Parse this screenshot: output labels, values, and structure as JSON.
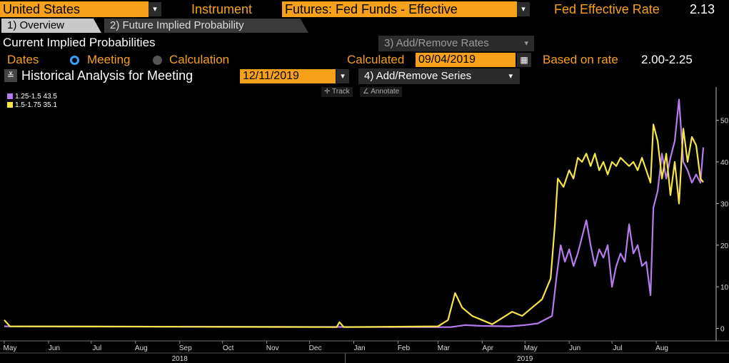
{
  "header": {
    "country": "United States",
    "instrument_label": "Instrument",
    "instrument_value": "Futures: Fed Funds - Effective",
    "rate_label": "Fed Effective Rate",
    "rate_value": "2.13"
  },
  "tabs": [
    {
      "label": "1) Overview",
      "active": true
    },
    {
      "label": "2) Future Implied Probability",
      "active": false
    }
  ],
  "section": {
    "title": "Current Implied Probabilities",
    "add_remove_rates": "3) Add/Remove Rates"
  },
  "options": {
    "dates_label": "Dates",
    "meeting_label": "Meeting",
    "calculation_label": "Calculation",
    "calculated_label": "Calculated",
    "calculated_value": "09/04/2019",
    "based_on_label": "Based on rate",
    "based_on_value": "2.00-2.25"
  },
  "historical": {
    "title": "Historical Analysis for Meeting",
    "meeting_date": "12/11/2019",
    "add_remove_series": "4) Add/Remove Series"
  },
  "chart_controls": {
    "track": "Track",
    "annotate": "Annotate"
  },
  "chart_data": {
    "type": "line",
    "legend_placement": "top-left",
    "grid": false,
    "ylim": [
      -3,
      58
    ],
    "y_ticks": [
      0,
      10,
      20,
      30,
      40,
      50
    ],
    "x_range": [
      "2018-05-01",
      "2019-09-04"
    ],
    "x_tick_labels": [
      {
        "label": "May",
        "date": "2018-05-01"
      },
      {
        "label": "Jun",
        "date": "2018-06-01"
      },
      {
        "label": "Jul",
        "date": "2018-07-01"
      },
      {
        "label": "Aug",
        "date": "2018-08-01"
      },
      {
        "label": "Sep",
        "date": "2018-09-01"
      },
      {
        "label": "Oct",
        "date": "2018-10-01"
      },
      {
        "label": "Nov",
        "date": "2018-11-01"
      },
      {
        "label": "Dec",
        "date": "2018-12-01"
      },
      {
        "label": "Jan",
        "date": "2019-01-01"
      },
      {
        "label": "Feb",
        "date": "2019-02-01"
      },
      {
        "label": "Mar",
        "date": "2019-03-01"
      },
      {
        "label": "Apr",
        "date": "2019-04-01"
      },
      {
        "label": "May",
        "date": "2019-05-01"
      },
      {
        "label": "Jun",
        "date": "2019-06-01"
      },
      {
        "label": "Jul",
        "date": "2019-07-01"
      },
      {
        "label": "Aug",
        "date": "2019-08-01"
      }
    ],
    "year_labels": [
      {
        "label": "2018",
        "date": "2018-09-01"
      },
      {
        "label": "2019",
        "date": "2019-05-01"
      }
    ],
    "series": [
      {
        "name": "1.25-1.5",
        "last": "43.5",
        "color": "#b57cf0",
        "points": [
          [
            "2018-05-01",
            0.5
          ],
          [
            "2019-03-10",
            0.3
          ],
          [
            "2019-03-20",
            0.8
          ],
          [
            "2019-04-01",
            0.6
          ],
          [
            "2019-04-20",
            0.5
          ],
          [
            "2019-05-01",
            0.8
          ],
          [
            "2019-05-10",
            1.2
          ],
          [
            "2019-05-20",
            3
          ],
          [
            "2019-05-23",
            12
          ],
          [
            "2019-05-26",
            20
          ],
          [
            "2019-05-29",
            16
          ],
          [
            "2019-06-01",
            19
          ],
          [
            "2019-06-04",
            15
          ],
          [
            "2019-06-07",
            18
          ],
          [
            "2019-06-10",
            22
          ],
          [
            "2019-06-13",
            26
          ],
          [
            "2019-06-16",
            20
          ],
          [
            "2019-06-19",
            15
          ],
          [
            "2019-06-22",
            19
          ],
          [
            "2019-06-25",
            17
          ],
          [
            "2019-06-28",
            20
          ],
          [
            "2019-07-01",
            10
          ],
          [
            "2019-07-04",
            15
          ],
          [
            "2019-07-07",
            18
          ],
          [
            "2019-07-10",
            16
          ],
          [
            "2019-07-13",
            25
          ],
          [
            "2019-07-16",
            18
          ],
          [
            "2019-07-19",
            20
          ],
          [
            "2019-07-22",
            15
          ],
          [
            "2019-07-25",
            16
          ],
          [
            "2019-07-28",
            8
          ],
          [
            "2019-07-30",
            29
          ],
          [
            "2019-08-02",
            33
          ],
          [
            "2019-08-05",
            42
          ],
          [
            "2019-08-08",
            36
          ],
          [
            "2019-08-11",
            41
          ],
          [
            "2019-08-14",
            45
          ],
          [
            "2019-08-17",
            55
          ],
          [
            "2019-08-20",
            40
          ],
          [
            "2019-08-23",
            38
          ],
          [
            "2019-08-26",
            35
          ],
          [
            "2019-08-29",
            37
          ],
          [
            "2019-09-01",
            35
          ],
          [
            "2019-09-03",
            43.5
          ]
        ]
      },
      {
        "name": "1.5-1.75",
        "last": "35.1",
        "color": "#f5e44a",
        "points": [
          [
            "2018-05-01",
            2
          ],
          [
            "2018-05-05",
            0.5
          ],
          [
            "2018-12-20",
            0.3
          ],
          [
            "2018-12-22",
            1.5
          ],
          [
            "2018-12-25",
            0.3
          ],
          [
            "2019-03-01",
            0.5
          ],
          [
            "2019-03-08",
            2
          ],
          [
            "2019-03-13",
            8.5
          ],
          [
            "2019-03-18",
            5
          ],
          [
            "2019-03-25",
            3
          ],
          [
            "2019-04-01",
            2
          ],
          [
            "2019-04-08",
            1
          ],
          [
            "2019-04-15",
            2.5
          ],
          [
            "2019-04-22",
            4
          ],
          [
            "2019-04-29",
            3
          ],
          [
            "2019-05-06",
            5
          ],
          [
            "2019-05-13",
            7
          ],
          [
            "2019-05-19",
            12
          ],
          [
            "2019-05-22",
            25
          ],
          [
            "2019-05-24",
            36
          ],
          [
            "2019-05-28",
            34
          ],
          [
            "2019-06-01",
            38
          ],
          [
            "2019-06-04",
            36
          ],
          [
            "2019-06-07",
            41
          ],
          [
            "2019-06-10",
            40
          ],
          [
            "2019-06-13",
            42
          ],
          [
            "2019-06-16",
            39
          ],
          [
            "2019-06-19",
            42
          ],
          [
            "2019-06-22",
            38
          ],
          [
            "2019-06-25",
            40
          ],
          [
            "2019-06-28",
            37
          ],
          [
            "2019-07-01",
            40
          ],
          [
            "2019-07-04",
            39
          ],
          [
            "2019-07-07",
            41
          ],
          [
            "2019-07-10",
            40
          ],
          [
            "2019-07-13",
            39
          ],
          [
            "2019-07-16",
            40
          ],
          [
            "2019-07-19",
            38
          ],
          [
            "2019-07-22",
            41
          ],
          [
            "2019-07-25",
            38
          ],
          [
            "2019-07-28",
            35
          ],
          [
            "2019-07-30",
            49
          ],
          [
            "2019-08-02",
            45
          ],
          [
            "2019-08-05",
            36
          ],
          [
            "2019-08-08",
            42
          ],
          [
            "2019-08-11",
            32
          ],
          [
            "2019-08-14",
            40
          ],
          [
            "2019-08-17",
            30
          ],
          [
            "2019-08-20",
            48
          ],
          [
            "2019-08-23",
            40
          ],
          [
            "2019-08-26",
            46
          ],
          [
            "2019-08-29",
            44
          ],
          [
            "2019-09-01",
            36
          ],
          [
            "2019-09-03",
            35.1
          ]
        ]
      }
    ]
  }
}
